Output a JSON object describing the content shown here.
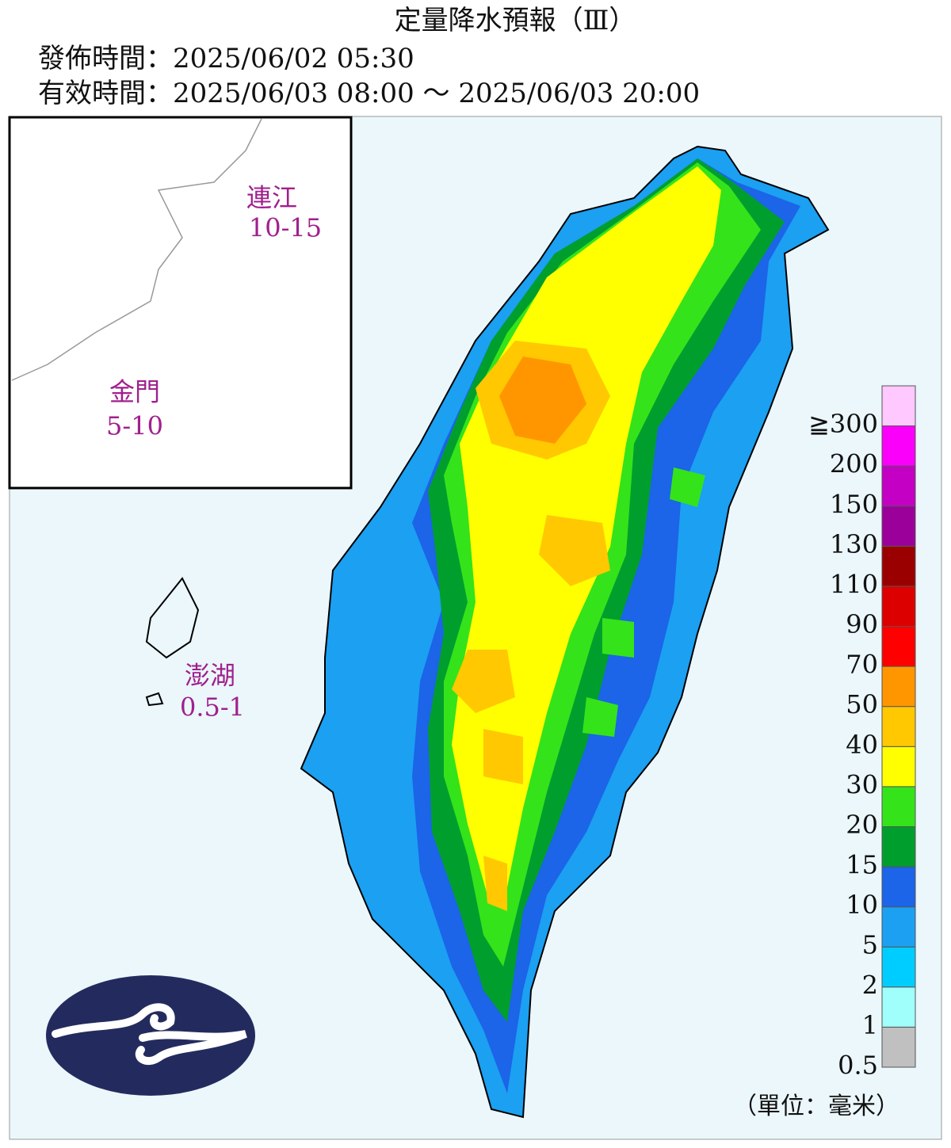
{
  "header": {
    "title": "定量降水預報（Ⅲ）",
    "issue_time": "發佈時間：2025/06/02 05:30",
    "valid_time": "有效時間：2025/06/03 08:00 ～ 2025/06/03 20:00"
  },
  "islands": [
    {
      "name": "連江",
      "value": "10-15"
    },
    {
      "name": "金門",
      "value": "5-10"
    },
    {
      "name": "澎湖",
      "value": "0.5-1"
    }
  ],
  "legend": {
    "colors": [
      "#c0c0c0",
      "#a0fffa",
      "#00cdff",
      "#1ba0f2",
      "#1c64e8",
      "#009f2d",
      "#35e31a",
      "#ffff00",
      "#ffc800",
      "#ff9600",
      "#ff0000",
      "#dc0000",
      "#9b0000",
      "#9b009b",
      "#c400c4",
      "#fa00fa",
      "#ffc8ff"
    ],
    "labels": [
      "0.5",
      "1",
      "2",
      "5",
      "10",
      "15",
      "20",
      "30",
      "40",
      "50",
      "70",
      "90",
      "110",
      "130",
      "150",
      "200",
      "≧300"
    ],
    "unit": "（單位：毫米）"
  }
}
